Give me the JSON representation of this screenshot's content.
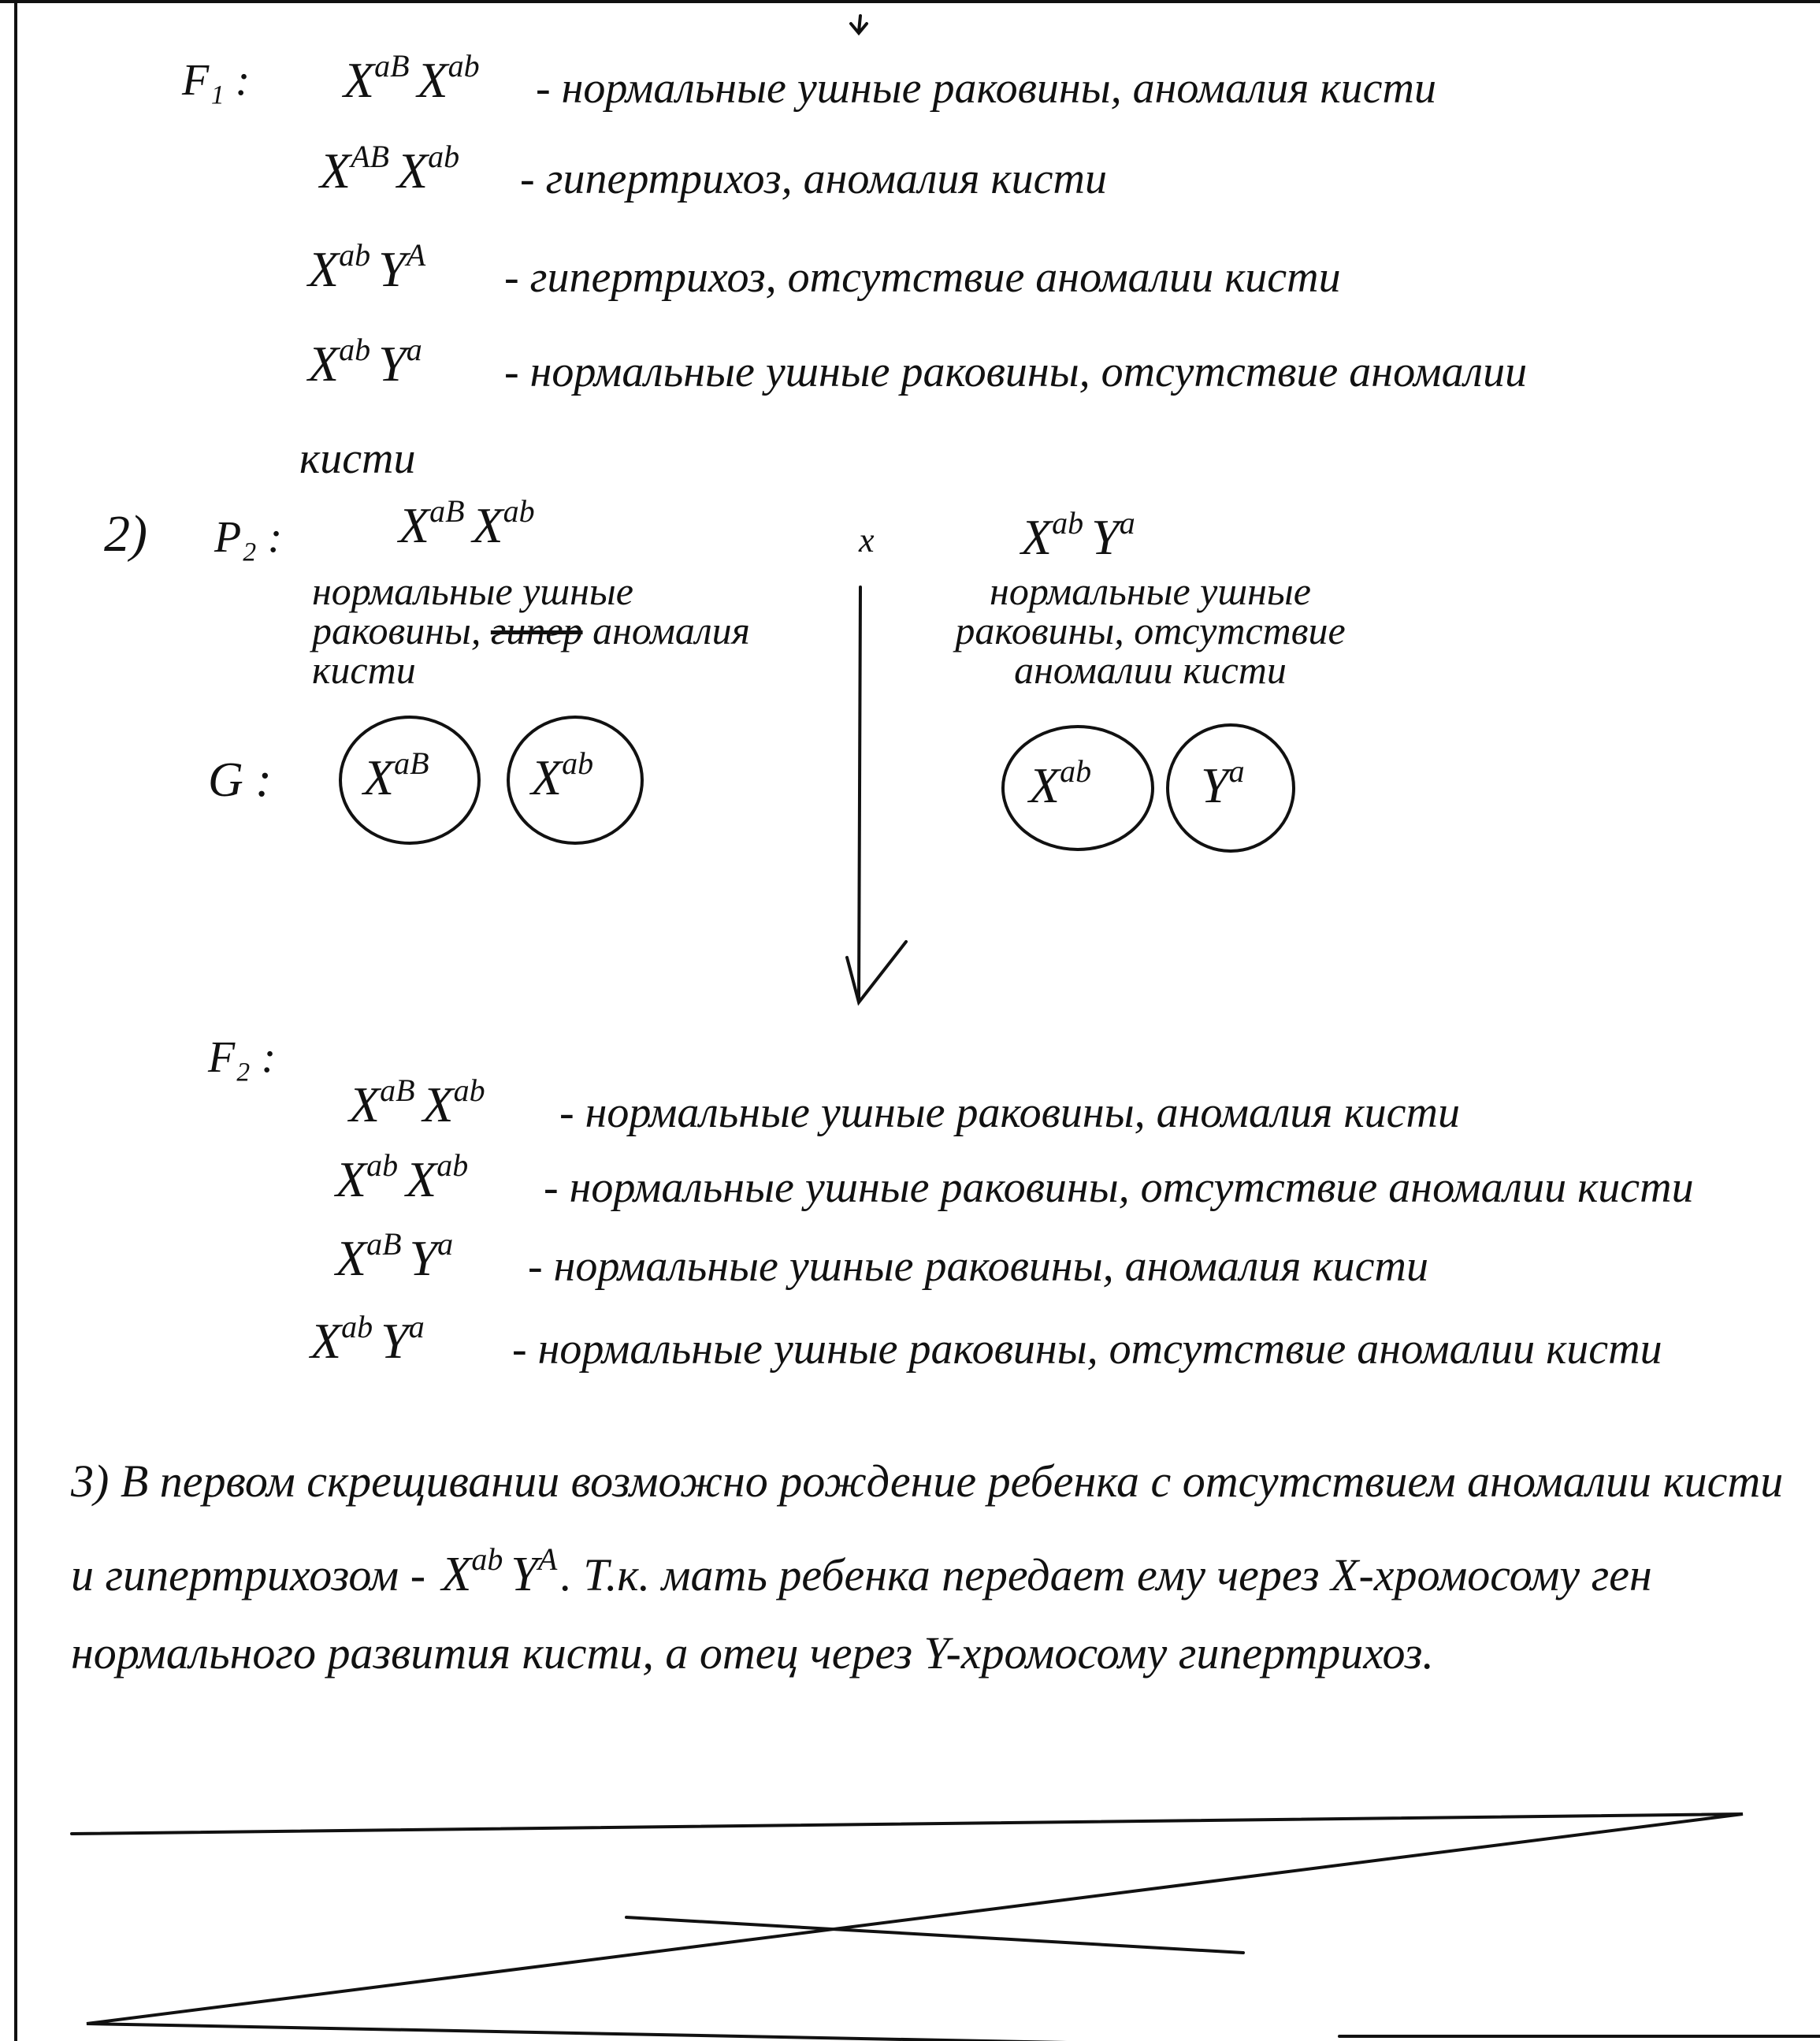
{
  "f1": {
    "label": "F₁ :",
    "rows": [
      {
        "genotype": [
          {
            "base": "X",
            "sup": "aB"
          },
          {
            "base": "X",
            "sup": "ab"
          }
        ],
        "description": "- нормальные ушные раковины, аномалия кисти"
      },
      {
        "genotype": [
          {
            "base": "X",
            "sup": "AB"
          },
          {
            "base": "X",
            "sup": "ab"
          }
        ],
        "description": "- гипертрихоз, аномалия кисти"
      },
      {
        "genotype": [
          {
            "base": "X",
            "sup": "ab"
          },
          {
            "base": "Y",
            "sup": "A"
          }
        ],
        "description": "- гипертрихоз, отсутствие аномалии кисти"
      },
      {
        "genotype": [
          {
            "base": "X",
            "sup": "ab"
          },
          {
            "base": "Y",
            "sup": "a"
          }
        ],
        "description": "- нормальные ушные раковины, отсутствие аномалии",
        "continued": "кисти"
      }
    ]
  },
  "cross2": {
    "number": "2)",
    "label": "P₂ :",
    "cross_sign": "x",
    "mother": {
      "genotype": [
        {
          "base": "X",
          "sup": "aB"
        },
        {
          "base": "X",
          "sup": "ab"
        }
      ],
      "phenotype_start": "нормальные ушные раковины,",
      "struck": "гипер",
      "phenotype_end": "аномалия кисти"
    },
    "father": {
      "genotype": [
        {
          "base": "X",
          "sup": "ab"
        },
        {
          "base": "Y",
          "sup": "a"
        }
      ],
      "phenotype": "нормальные ушные раковины, отсутствие аномалии кисти"
    },
    "gametes_label": "G :",
    "mother_gametes": [
      [
        {
          "base": "X",
          "sup": "aB"
        }
      ],
      [
        {
          "base": "X",
          "sup": "ab"
        }
      ]
    ],
    "father_gametes": [
      [
        {
          "base": "X",
          "sup": "ab"
        }
      ],
      [
        {
          "base": "Y",
          "sup": "a"
        }
      ]
    ]
  },
  "f2": {
    "label": "F₂ :",
    "rows": [
      {
        "genotype": [
          {
            "base": "X",
            "sup": "aB"
          },
          {
            "base": "X",
            "sup": "ab"
          }
        ],
        "description": "- нормальные ушные раковины, аномалия кисти"
      },
      {
        "genotype": [
          {
            "base": "X",
            "sup": "ab"
          },
          {
            "base": "X",
            "sup": "ab"
          }
        ],
        "description": "- нормальные ушные раковины, отсутствие аномалии кисти"
      },
      {
        "genotype": [
          {
            "base": "X",
            "sup": "aB"
          },
          {
            "base": "Y",
            "sup": "a"
          }
        ],
        "description": "- нормальные ушные раковины, аномалия кисти"
      },
      {
        "genotype": [
          {
            "base": "X",
            "sup": "ab"
          },
          {
            "base": "Y",
            "sup": "a"
          }
        ],
        "description": "- нормальные ушные раковины, отсутствие аномалии кисти"
      }
    ]
  },
  "answer3": {
    "text_before": "3) В первом скрещивании возможно рождение ребенка с отсутствием аномалии кисти и гипертрихозом -",
    "genotype": [
      {
        "base": "X",
        "sup": "ab"
      },
      {
        "base": "Y",
        "sup": "A"
      }
    ],
    "text_after": ". Т.к. мать ребенка передает ему через X-хромосому ген нормального развития кисти, а отец через Y-хромосому гипертрихоз."
  }
}
